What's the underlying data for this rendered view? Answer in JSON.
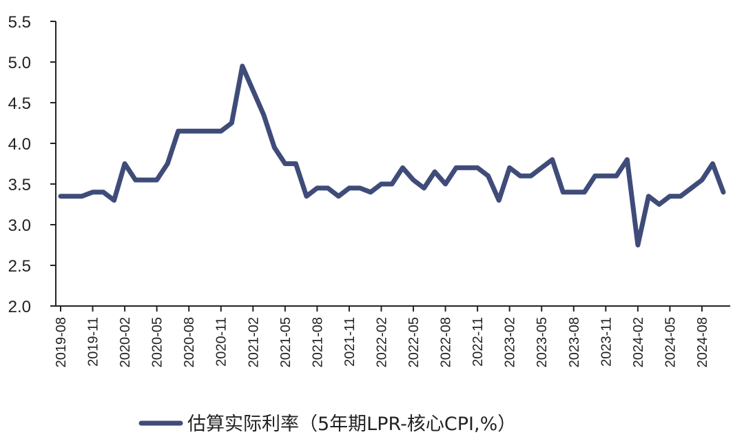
{
  "chart_data": {
    "type": "line",
    "title": "",
    "xlabel": "",
    "ylabel": "",
    "ylim": [
      2.0,
      5.5
    ],
    "yticks": [
      "2.0",
      "2.5",
      "3.0",
      "3.5",
      "4.0",
      "4.5",
      "5.0",
      "5.5"
    ],
    "grid": false,
    "legend_position": "bottom",
    "x_tick_labels": [
      "2019-08",
      "2019-11",
      "2020-02",
      "2020-05",
      "2020-08",
      "2020-11",
      "2021-02",
      "2021-05",
      "2021-08",
      "2021-11",
      "2022-02",
      "2022-05",
      "2022-08",
      "2022-11",
      "2023-02",
      "2023-05",
      "2023-08",
      "2023-11",
      "2024-02",
      "2024-05",
      "2024-08"
    ],
    "x": [
      "2019-08",
      "2019-09",
      "2019-10",
      "2019-11",
      "2019-12",
      "2020-01",
      "2020-02",
      "2020-03",
      "2020-04",
      "2020-05",
      "2020-06",
      "2020-07",
      "2020-08",
      "2020-09",
      "2020-10",
      "2020-11",
      "2020-12",
      "2021-01",
      "2021-02",
      "2021-03",
      "2021-04",
      "2021-05",
      "2021-06",
      "2021-07",
      "2021-08",
      "2021-09",
      "2021-10",
      "2021-11",
      "2021-12",
      "2022-01",
      "2022-02",
      "2022-03",
      "2022-04",
      "2022-05",
      "2022-06",
      "2022-07",
      "2022-08",
      "2022-09",
      "2022-10",
      "2022-11",
      "2022-12",
      "2023-01",
      "2023-02",
      "2023-03",
      "2023-04",
      "2023-05",
      "2023-06",
      "2023-07",
      "2023-08",
      "2023-09",
      "2023-10",
      "2023-11",
      "2023-12",
      "2024-01",
      "2024-02",
      "2024-03",
      "2024-04",
      "2024-05",
      "2024-06",
      "2024-07",
      "2024-08",
      "2024-09",
      "2024-10"
    ],
    "series": [
      {
        "name": "估算实际利率（5年期LPR-核心CPI,%）",
        "color": "#3f4c79",
        "values": [
          3.35,
          3.35,
          3.35,
          3.4,
          3.4,
          3.3,
          3.75,
          3.55,
          3.55,
          3.55,
          3.75,
          4.15,
          4.15,
          4.15,
          4.15,
          4.15,
          4.25,
          4.95,
          4.65,
          4.35,
          3.95,
          3.75,
          3.75,
          3.35,
          3.45,
          3.45,
          3.35,
          3.45,
          3.45,
          3.4,
          3.5,
          3.5,
          3.7,
          3.55,
          3.45,
          3.65,
          3.5,
          3.7,
          3.7,
          3.7,
          3.6,
          3.3,
          3.7,
          3.6,
          3.6,
          3.7,
          3.8,
          3.4,
          3.4,
          3.4,
          3.6,
          3.6,
          3.6,
          3.8,
          2.75,
          3.35,
          3.25,
          3.35,
          3.35,
          3.45,
          3.55,
          3.75,
          3.4
        ]
      }
    ]
  }
}
